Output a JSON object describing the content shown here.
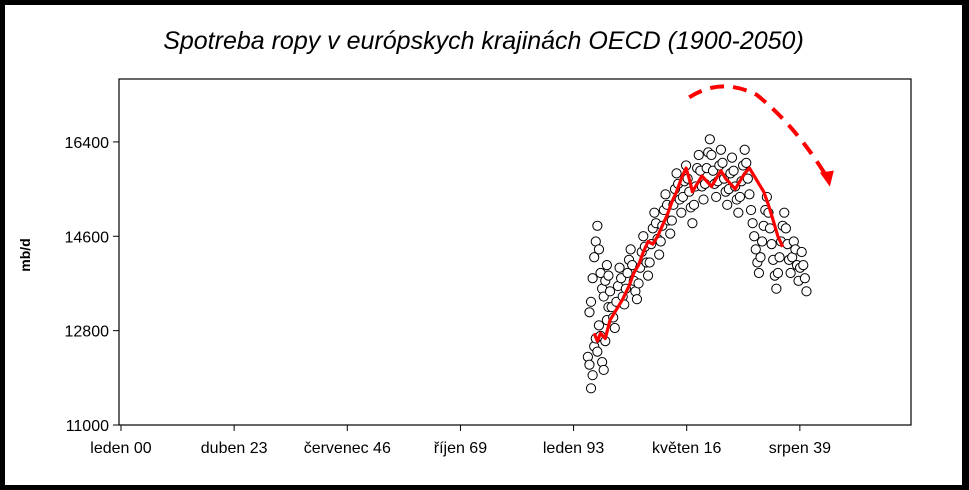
{
  "chart_data": {
    "type": "scatter",
    "title": "Spotreba ropy v európskych krajinách OECD (1900-2050)",
    "xlabel": "",
    "ylabel": "mb/d",
    "ylim": [
      11000,
      17600
    ],
    "xlim": [
      0,
      1
    ],
    "y_ticks": [
      11000,
      12800,
      14600,
      16400
    ],
    "y_tick_labels": [
      "11000",
      "12800",
      "14600",
      "16400"
    ],
    "x_tick_labels": [
      "leden 00",
      "duben 23",
      "červenec 46",
      "říjen 69",
      "leden 93",
      "květen 16",
      "srpen 39"
    ],
    "grid": false,
    "legend": "none",
    "series": [
      {
        "kind": "monthly-points",
        "marker": "open-circle",
        "color": "#000000",
        "points": [
          [
            0.592,
            12300
          ],
          [
            0.594,
            12150
          ],
          [
            0.596,
            11700
          ],
          [
            0.598,
            11950
          ],
          [
            0.6,
            12500
          ],
          [
            0.602,
            12650
          ],
          [
            0.604,
            12400
          ],
          [
            0.606,
            12900
          ],
          [
            0.608,
            12700
          ],
          [
            0.61,
            12200
          ],
          [
            0.612,
            12050
          ],
          [
            0.614,
            12600
          ],
          [
            0.616,
            13000
          ],
          [
            0.618,
            13250
          ],
          [
            0.594,
            13150
          ],
          [
            0.596,
            13350
          ],
          [
            0.598,
            13800
          ],
          [
            0.6,
            14200
          ],
          [
            0.602,
            14500
          ],
          [
            0.604,
            14800
          ],
          [
            0.606,
            14350
          ],
          [
            0.608,
            13900
          ],
          [
            0.61,
            13600
          ],
          [
            0.612,
            13450
          ],
          [
            0.614,
            13750
          ],
          [
            0.616,
            14050
          ],
          [
            0.618,
            13850
          ],
          [
            0.62,
            13550
          ],
          [
            0.622,
            13250
          ],
          [
            0.624,
            13050
          ],
          [
            0.626,
            12850
          ],
          [
            0.628,
            13350
          ],
          [
            0.63,
            13650
          ],
          [
            0.632,
            14000
          ],
          [
            0.634,
            13800
          ],
          [
            0.636,
            13450
          ],
          [
            0.638,
            13300
          ],
          [
            0.64,
            13600
          ],
          [
            0.642,
            13900
          ],
          [
            0.644,
            14150
          ],
          [
            0.646,
            14350
          ],
          [
            0.648,
            14050
          ],
          [
            0.65,
            13750
          ],
          [
            0.652,
            13550
          ],
          [
            0.654,
            13400
          ],
          [
            0.656,
            13700
          ],
          [
            0.658,
            14000
          ],
          [
            0.66,
            14300
          ],
          [
            0.662,
            14600
          ],
          [
            0.664,
            14400
          ],
          [
            0.666,
            14100
          ],
          [
            0.668,
            13850
          ],
          [
            0.67,
            14100
          ],
          [
            0.672,
            14450
          ],
          [
            0.674,
            14750
          ],
          [
            0.676,
            15050
          ],
          [
            0.678,
            14850
          ],
          [
            0.68,
            14550
          ],
          [
            0.682,
            14250
          ],
          [
            0.684,
            14500
          ],
          [
            0.686,
            14800
          ],
          [
            0.688,
            15100
          ],
          [
            0.69,
            15400
          ],
          [
            0.692,
            15200
          ],
          [
            0.694,
            14900
          ],
          [
            0.696,
            14650
          ],
          [
            0.698,
            14900
          ],
          [
            0.7,
            15200
          ],
          [
            0.702,
            15500
          ],
          [
            0.704,
            15800
          ],
          [
            0.706,
            15600
          ],
          [
            0.708,
            15300
          ],
          [
            0.71,
            15050
          ],
          [
            0.712,
            15350
          ],
          [
            0.714,
            15650
          ],
          [
            0.716,
            15950
          ],
          [
            0.718,
            15700
          ],
          [
            0.72,
            15450
          ],
          [
            0.722,
            15150
          ],
          [
            0.724,
            14850
          ],
          [
            0.726,
            15200
          ],
          [
            0.728,
            15550
          ],
          [
            0.73,
            15900
          ],
          [
            0.732,
            16150
          ],
          [
            0.734,
            15850
          ],
          [
            0.736,
            15550
          ],
          [
            0.738,
            15300
          ],
          [
            0.74,
            15600
          ],
          [
            0.742,
            15900
          ],
          [
            0.744,
            16200
          ],
          [
            0.746,
            16450
          ],
          [
            0.748,
            16150
          ],
          [
            0.75,
            15850
          ],
          [
            0.752,
            15600
          ],
          [
            0.754,
            15350
          ],
          [
            0.756,
            15650
          ],
          [
            0.758,
            15950
          ],
          [
            0.76,
            16250
          ],
          [
            0.762,
            16000
          ],
          [
            0.764,
            15700
          ],
          [
            0.766,
            15450
          ],
          [
            0.768,
            15200
          ],
          [
            0.77,
            15500
          ],
          [
            0.772,
            15800
          ],
          [
            0.774,
            16100
          ],
          [
            0.776,
            15850
          ],
          [
            0.778,
            15550
          ],
          [
            0.78,
            15300
          ],
          [
            0.782,
            15050
          ],
          [
            0.784,
            15350
          ],
          [
            0.786,
            15650
          ],
          [
            0.788,
            15950
          ],
          [
            0.79,
            16250
          ],
          [
            0.792,
            16000
          ],
          [
            0.794,
            15700
          ],
          [
            0.796,
            15400
          ],
          [
            0.798,
            15100
          ],
          [
            0.8,
            14850
          ],
          [
            0.802,
            14600
          ],
          [
            0.804,
            14350
          ],
          [
            0.806,
            14100
          ],
          [
            0.808,
            13900
          ],
          [
            0.81,
            14200
          ],
          [
            0.812,
            14500
          ],
          [
            0.814,
            14800
          ],
          [
            0.816,
            15100
          ],
          [
            0.818,
            15350
          ],
          [
            0.82,
            15050
          ],
          [
            0.822,
            14750
          ],
          [
            0.824,
            14450
          ],
          [
            0.826,
            14150
          ],
          [
            0.828,
            13850
          ],
          [
            0.83,
            13600
          ],
          [
            0.832,
            13900
          ],
          [
            0.834,
            14200
          ],
          [
            0.836,
            14500
          ],
          [
            0.838,
            14800
          ],
          [
            0.84,
            15050
          ],
          [
            0.842,
            14750
          ],
          [
            0.844,
            14450
          ],
          [
            0.846,
            14150
          ],
          [
            0.848,
            13900
          ],
          [
            0.85,
            14200
          ],
          [
            0.852,
            14500
          ],
          [
            0.854,
            14350
          ],
          [
            0.856,
            14050
          ],
          [
            0.858,
            13750
          ],
          [
            0.86,
            14000
          ],
          [
            0.862,
            14300
          ],
          [
            0.864,
            14050
          ],
          [
            0.866,
            13800
          ],
          [
            0.868,
            13550
          ]
        ]
      },
      {
        "kind": "trend-line",
        "color": "#ff0000",
        "points": [
          [
            0.6,
            12750
          ],
          [
            0.604,
            12600
          ],
          [
            0.608,
            12750
          ],
          [
            0.614,
            12650
          ],
          [
            0.62,
            13000
          ],
          [
            0.628,
            13200
          ],
          [
            0.636,
            13400
          ],
          [
            0.644,
            13650
          ],
          [
            0.65,
            13900
          ],
          [
            0.656,
            14050
          ],
          [
            0.662,
            14300
          ],
          [
            0.668,
            14500
          ],
          [
            0.674,
            14450
          ],
          [
            0.68,
            14600
          ],
          [
            0.686,
            14800
          ],
          [
            0.692,
            15000
          ],
          [
            0.698,
            15250
          ],
          [
            0.704,
            15450
          ],
          [
            0.71,
            15700
          ],
          [
            0.716,
            15900
          ],
          [
            0.72,
            15700
          ],
          [
            0.724,
            15450
          ],
          [
            0.73,
            15600
          ],
          [
            0.736,
            15750
          ],
          [
            0.742,
            15650
          ],
          [
            0.748,
            15550
          ],
          [
            0.754,
            15700
          ],
          [
            0.76,
            15850
          ],
          [
            0.766,
            15700
          ],
          [
            0.772,
            15600
          ],
          [
            0.778,
            15500
          ],
          [
            0.784,
            15650
          ],
          [
            0.79,
            15800
          ],
          [
            0.796,
            15900
          ],
          [
            0.802,
            15750
          ],
          [
            0.808,
            15600
          ],
          [
            0.814,
            15450
          ],
          [
            0.82,
            15200
          ],
          [
            0.826,
            14900
          ],
          [
            0.832,
            14600
          ],
          [
            0.838,
            14400
          ]
        ]
      },
      {
        "kind": "peak-arrow",
        "color": "#ff0000",
        "style": "dashed",
        "points": [
          [
            0.72,
            17250
          ],
          [
            0.76,
            17450
          ],
          [
            0.805,
            17300
          ],
          [
            0.855,
            16700
          ],
          [
            0.895,
            15700
          ]
        ]
      }
    ]
  }
}
